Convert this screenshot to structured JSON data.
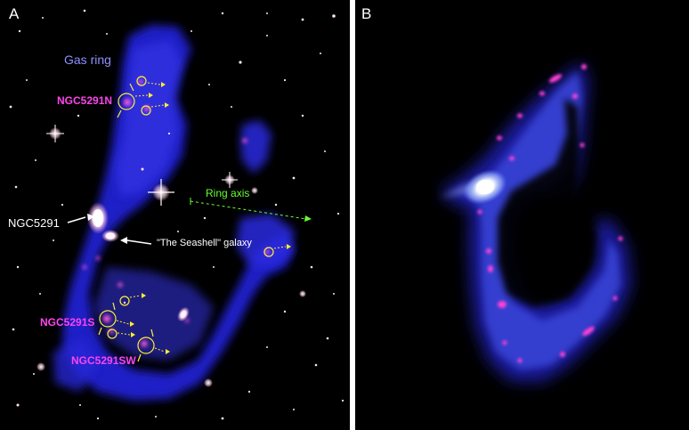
{
  "panel_a": {
    "letter": "A",
    "labels": {
      "gas_ring": "Gas ring",
      "ngc5291n": "NGC5291N",
      "ngc5291": "NGC5291",
      "seashell": "\"The Seashell\" galaxy",
      "ring_axis": "Ring axis",
      "ngc5291s": "NGC5291S",
      "ngc5291sw": "NGC5291SW"
    }
  },
  "panel_b": {
    "letter": "B"
  },
  "colors": {
    "gas_blue": "#2a2ae0",
    "label_magenta": "#ff44ee",
    "marker_yellow": "#ffee33",
    "axis_green": "#66ff33",
    "label_white": "#ffffff",
    "gas_ring_label": "#8f8fff"
  }
}
